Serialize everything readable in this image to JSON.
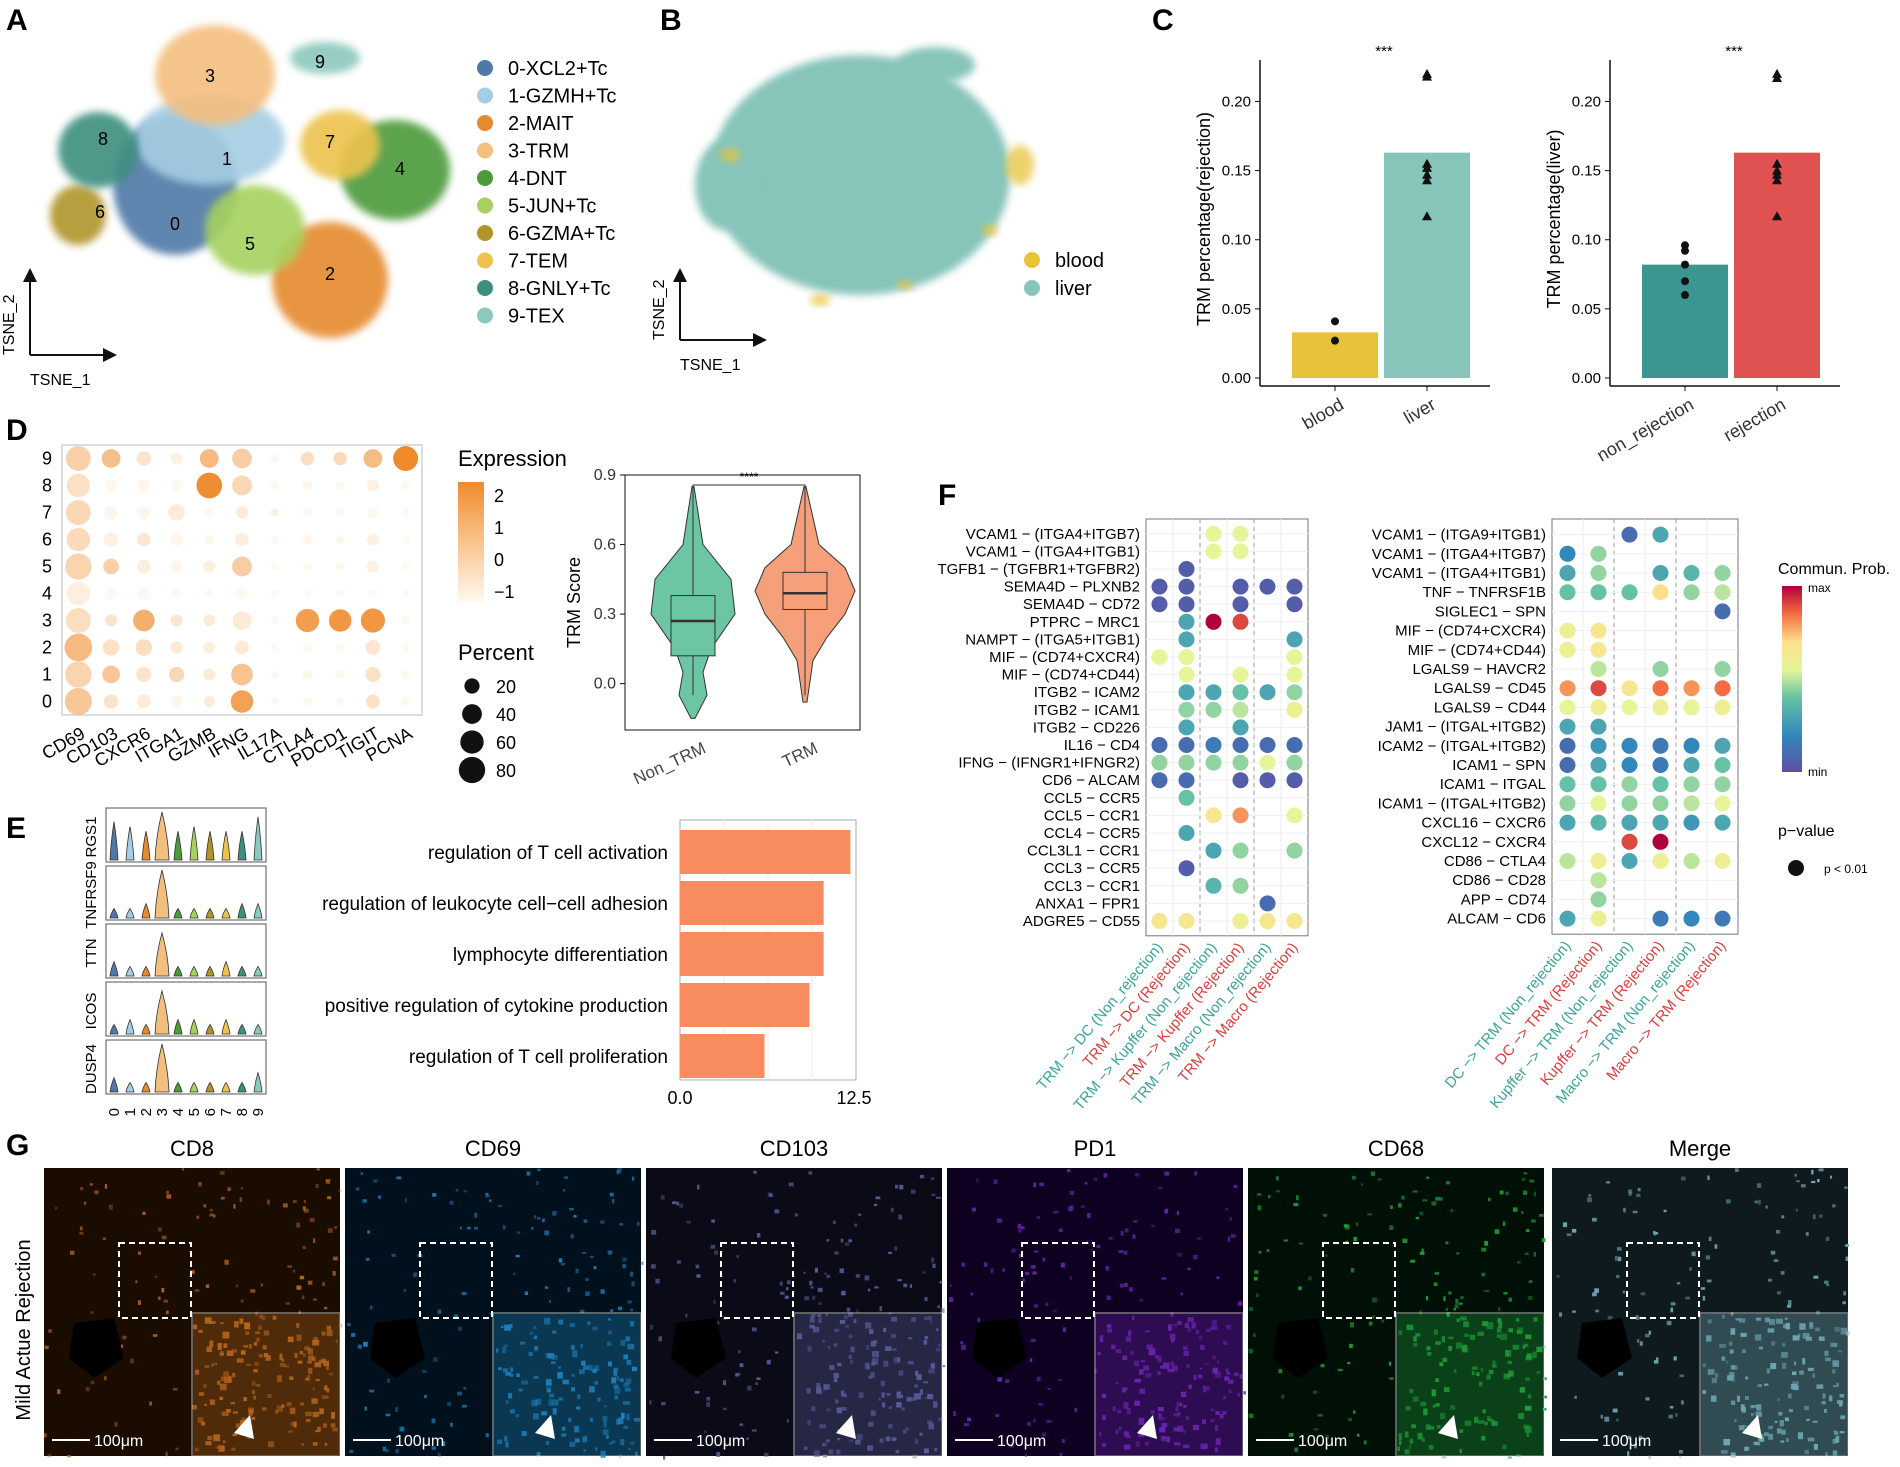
{
  "panels": {
    "A": "A",
    "B": "B",
    "C": "C",
    "D": "D",
    "E": "E",
    "F": "F",
    "G": "G"
  },
  "colors": {
    "clusters": [
      "#4e79a7",
      "#a6cee3",
      "#e68a2e",
      "#f4be7e",
      "#4c9a3a",
      "#a6d15e",
      "#b0942a",
      "#edc34e",
      "#3e8f7f",
      "#8cc8bd"
    ],
    "blood": "#e8c33a",
    "liver": "#87c4ba",
    "non_trm_violin": "#6cc5a3",
    "trm_violin": "#f5a07a",
    "non_rejection_bar": "#3d9590",
    "rejection_bar": "#e05252",
    "enrichment_bar": "#f98c5e",
    "teal_label": "#3aa39a",
    "red_label": "#de3c3c"
  },
  "panelA": {
    "xaxis": "TSNE_1",
    "yaxis": "TSNE_2",
    "cluster_numbers": [
      "0",
      "1",
      "2",
      "3",
      "4",
      "5",
      "6",
      "7",
      "8",
      "9"
    ],
    "legend": [
      "0-XCL2+Tc",
      "1-GZMH+Tc",
      "2-MAIT",
      "3-TRM",
      "4-DNT",
      "5-JUN+Tc",
      "6-GZMA+Tc",
      "7-TEM",
      "8-GNLY+Tc",
      "9-TEX"
    ]
  },
  "panelB": {
    "xaxis": "TSNE_1",
    "yaxis": "TSNE_2",
    "legend": [
      "blood",
      "liver"
    ]
  },
  "chart_data": [
    {
      "panel": "C-left",
      "type": "bar",
      "categories": [
        "blood",
        "liver"
      ],
      "values": [
        0.033,
        0.163
      ],
      "points": [
        [
          0.041,
          0.027
        ],
        [
          0.22,
          0.218,
          0.155,
          0.152,
          0.147,
          0.143,
          0.117
        ]
      ],
      "ylabel": "TRM percentage(rejection)",
      "ylim": [
        0,
        0.23
      ],
      "yticks": [
        "0.00",
        "0.05",
        "0.10",
        "0.15",
        "0.20"
      ],
      "significance": "***"
    },
    {
      "panel": "C-right",
      "type": "bar",
      "categories": [
        "non_rejection",
        "rejection"
      ],
      "values": [
        0.082,
        0.163
      ],
      "points": [
        [
          0.096,
          0.092,
          0.082,
          0.07,
          0.06
        ],
        [
          0.22,
          0.217,
          0.155,
          0.15,
          0.147,
          0.143,
          0.117
        ]
      ],
      "ylabel": "TRM percentage(liver)",
      "ylim": [
        0,
        0.23
      ],
      "yticks": [
        "0.00",
        "0.05",
        "0.10",
        "0.15",
        "0.20"
      ],
      "significance": "***"
    },
    {
      "panel": "D-dot",
      "type": "scatter",
      "genes": [
        "CD69",
        "CD103",
        "CXCR6",
        "ITGA1",
        "GZMB",
        "IFNG",
        "IL17A",
        "CTLA4",
        "PDCD1",
        "TIGIT",
        "PCNA"
      ],
      "clusters": [
        "9",
        "8",
        "7",
        "6",
        "5",
        "4",
        "3",
        "2",
        "1",
        "0"
      ],
      "expression": [
        [
          0.2,
          0.7,
          -0.4,
          -0.8,
          0.9,
          0.3,
          -1.0,
          -0.2,
          -0.1,
          0.8,
          2.3
        ],
        [
          -0.3,
          -1.0,
          -0.9,
          -1.0,
          2.2,
          0.0,
          -1.0,
          -0.9,
          -1.0,
          -0.8,
          -1.0
        ],
        [
          0.0,
          -0.9,
          -0.9,
          -0.6,
          -1.0,
          -0.6,
          -0.8,
          -1.0,
          -1.0,
          -1.0,
          -1.0
        ],
        [
          -0.1,
          -0.8,
          -0.5,
          -0.9,
          -0.9,
          -0.7,
          -1.0,
          -0.9,
          -0.9,
          -0.8,
          -1.0
        ],
        [
          0.1,
          0.2,
          -0.7,
          -0.9,
          -0.7,
          0.3,
          -1.0,
          -1.0,
          -1.0,
          -0.8,
          -1.0
        ],
        [
          -0.7,
          -1.0,
          -1.0,
          -1.0,
          -1.0,
          -1.0,
          -1.0,
          -1.0,
          -1.0,
          -1.0,
          -1.0
        ],
        [
          -0.2,
          -0.4,
          1.2,
          -0.5,
          -0.6,
          -0.6,
          -1.0,
          1.7,
          1.9,
          1.9,
          -1.0
        ],
        [
          0.9,
          -0.3,
          -0.2,
          -0.6,
          -0.7,
          -0.6,
          -1.0,
          -1.0,
          -1.0,
          -0.5,
          -1.0
        ],
        [
          0.1,
          0.5,
          -0.4,
          0.0,
          -0.6,
          0.6,
          -1.0,
          -0.9,
          -1.0,
          -0.3,
          -1.0
        ],
        [
          0.5,
          -0.4,
          -0.6,
          -0.9,
          -0.6,
          1.6,
          -1.0,
          -1.0,
          -1.0,
          -0.3,
          -1.0
        ]
      ],
      "percent": [
        [
          70,
          35,
          18,
          10,
          35,
          40,
          3,
          14,
          14,
          35,
          70
        ],
        [
          60,
          12,
          10,
          8,
          75,
          40,
          3,
          5,
          4,
          10,
          3
        ],
        [
          70,
          15,
          12,
          25,
          5,
          10,
          3,
          4,
          3,
          8,
          3
        ],
        [
          60,
          18,
          15,
          10,
          5,
          15,
          2,
          5,
          4,
          10,
          3
        ],
        [
          80,
          22,
          15,
          10,
          10,
          40,
          2,
          3,
          3,
          10,
          3
        ],
        [
          60,
          10,
          10,
          6,
          4,
          10,
          2,
          2,
          2,
          4,
          2
        ],
        [
          70,
          10,
          50,
          10,
          10,
          35,
          2,
          60,
          55,
          65,
          3
        ],
        [
          90,
          25,
          25,
          12,
          10,
          15,
          2,
          5,
          3,
          20,
          3
        ],
        [
          80,
          30,
          20,
          20,
          10,
          50,
          2,
          5,
          5,
          20,
          3
        ],
        [
          85,
          18,
          15,
          10,
          8,
          55,
          2,
          3,
          3,
          15,
          3
        ]
      ],
      "legend_expression_title": "Expression",
      "legend_expression_ticks": [
        "2",
        "1",
        "0",
        "−1"
      ],
      "legend_percent_title": "Percent",
      "legend_percent_ticks": [
        "20",
        "40",
        "60",
        "80"
      ]
    },
    {
      "panel": "D-violin",
      "type": "box",
      "categories": [
        "Non_TRM",
        "TRM"
      ],
      "median": [
        0.27,
        0.39
      ],
      "q1": [
        0.12,
        0.32
      ],
      "q3": [
        0.38,
        0.48
      ],
      "ylabel": "TRM Score",
      "ylim": [
        -0.2,
        0.9
      ],
      "yticks": [
        "0.0",
        "0.3",
        "0.6",
        "0.9"
      ],
      "significance": "****"
    },
    {
      "panel": "E-violin",
      "type": "violin",
      "genes": [
        "RGS1",
        "TNFRSF9",
        "TTN",
        "ICOS",
        "DUSP4"
      ],
      "xticks": [
        "0",
        "1",
        "2",
        "3",
        "4",
        "5",
        "6",
        "7",
        "8",
        "9"
      ],
      "height": [
        [
          0.8,
          0.7,
          0.6,
          1.0,
          0.6,
          0.7,
          0.6,
          0.6,
          0.6,
          0.9
        ],
        [
          0.2,
          0.2,
          0.3,
          1.0,
          0.2,
          0.2,
          0.2,
          0.2,
          0.3,
          0.3
        ],
        [
          0.3,
          0.2,
          0.2,
          0.9,
          0.2,
          0.2,
          0.2,
          0.3,
          0.2,
          0.2
        ],
        [
          0.2,
          0.3,
          0.2,
          0.9,
          0.3,
          0.3,
          0.2,
          0.3,
          0.2,
          0.2
        ],
        [
          0.3,
          0.2,
          0.2,
          1.0,
          0.2,
          0.2,
          0.2,
          0.2,
          0.2,
          0.4
        ]
      ]
    },
    {
      "panel": "E-bar",
      "type": "bar",
      "categories": [
        "regulation of T cell activation",
        "regulation of leukocyte cell−cell adhesion",
        "lymphocyte differentiation",
        "positive regulation of cytokine production",
        "regulation of T cell proliferation"
      ],
      "values": [
        12.1,
        10.2,
        10.2,
        9.2,
        6.0
      ],
      "xlim": [
        0,
        12.5
      ],
      "xticks": [
        "0.0",
        "12.5"
      ]
    },
    {
      "panel": "F-left",
      "type": "scatter",
      "rows": [
        "VCAM1 − (ITGA4+ITGB7)",
        "VCAM1 − (ITGA4+ITGB1)",
        "TGFB1 − (TGFBR1+TGFBR2)",
        "SEMA4D − PLXNB2",
        "SEMA4D − CD72",
        "PTPRC − MRC1",
        "NAMPT − (ITGA5+ITGB1)",
        "MIF − (CD74+CXCR4)",
        "MIF − (CD74+CD44)",
        "ITGB2 − ICAM2",
        "ITGB2 − ICAM1",
        "ITGB2 − CD226",
        "IL16 − CD4",
        "IFNG − (IFNGR1+IFNGR2)",
        "CD6 − ALCAM",
        "CCL5 − CCR5",
        "CCL5 − CCR1",
        "CCL4 − CCR5",
        "CCL3L1 − CCR1",
        "CCL3 − CCR5",
        "CCL3 − CCR1",
        "ANXA1 − FPR1",
        "ADGRE5 − CD55"
      ],
      "columns": [
        "TRM −> DC (Non_rejection)",
        "TRM −> DC (Rejection)",
        "TRM −> Kupffer (Non_rejection)",
        "TRM −> Kupffer (Rejection)",
        "TRM −> Macro (Non_rejection)",
        "TRM −> Macro (Rejection)"
      ],
      "values": [
        [
          null,
          null,
          0.55,
          0.55,
          null,
          null
        ],
        [
          null,
          null,
          0.55,
          0.55,
          null,
          null
        ],
        [
          null,
          0.05,
          null,
          null,
          null,
          null
        ],
        [
          0.05,
          0.05,
          null,
          0.05,
          0.05,
          0.05
        ],
        [
          0.05,
          0.05,
          null,
          0.05,
          null,
          0.05
        ],
        [
          null,
          0.3,
          1.0,
          0.9,
          null,
          null
        ],
        [
          null,
          0.3,
          null,
          null,
          null,
          0.3
        ],
        [
          0.55,
          0.55,
          null,
          null,
          null,
          0.55
        ],
        [
          null,
          0.55,
          null,
          0.55,
          null,
          0.55
        ],
        [
          null,
          0.3,
          0.3,
          0.4,
          0.3,
          0.45
        ],
        [
          null,
          0.45,
          0.45,
          0.5,
          null,
          0.6
        ],
        [
          null,
          0.3,
          null,
          0.3,
          null,
          null
        ],
        [
          0.1,
          0.1,
          0.15,
          0.1,
          0.1,
          0.1
        ],
        [
          0.45,
          0.45,
          0.45,
          0.45,
          0.55,
          0.45
        ],
        [
          0.1,
          0.1,
          null,
          0.05,
          0.05,
          0.05
        ],
        [
          null,
          0.4,
          null,
          null,
          null,
          null
        ],
        [
          null,
          null,
          0.65,
          0.8,
          null,
          0.55
        ],
        [
          null,
          0.3,
          null,
          null,
          null,
          null
        ],
        [
          null,
          null,
          0.3,
          0.45,
          null,
          0.45
        ],
        [
          null,
          0.05,
          null,
          null,
          null,
          null
        ],
        [
          null,
          null,
          0.35,
          0.45,
          null,
          null
        ],
        [
          null,
          null,
          null,
          null,
          0.1,
          null
        ],
        [
          0.65,
          0.65,
          null,
          0.6,
          0.65,
          0.65
        ]
      ]
    },
    {
      "panel": "F-right",
      "type": "scatter",
      "rows": [
        "VCAM1 − (ITGA9+ITGB1)",
        "VCAM1 − (ITGA4+ITGB7)",
        "VCAM1 − (ITGA4+ITGB1)",
        "TNF − TNFRSF1B",
        "SIGLEC1 − SPN",
        "MIF − (CD74+CXCR4)",
        "MIF − (CD74+CD44)",
        "LGALS9 − HAVCR2",
        "LGALS9 − CD45",
        "LGALS9 − CD44",
        "JAM1 − (ITGAL+ITGB2)",
        "ICAM2 − (ITGAL+ITGB2)",
        "ICAM1 − SPN",
        "ICAM1 − ITGAL",
        "ICAM1 − (ITGAL+ITGB2)",
        "CXCL16 − CXCR6",
        "CXCL12 − CXCR4",
        "CD86 − CTLA4",
        "CD86 − CD28",
        "APP − CD74",
        "ALCAM − CD6"
      ],
      "columns": [
        "DC −> TRM (Non_rejection)",
        "DC −> TRM (Rejection)",
        "Kupffer −> TRM (Non_rejection)",
        "Kupffer −> TRM (Rejection)",
        "Macro −> TRM (Non_rejection)",
        "Macro −> TRM (Rejection)"
      ],
      "values": [
        [
          null,
          null,
          0.1,
          0.3,
          null,
          null
        ],
        [
          0.2,
          0.45,
          null,
          null,
          null,
          null
        ],
        [
          0.3,
          0.45,
          null,
          0.3,
          0.35,
          0.45
        ],
        [
          0.4,
          0.4,
          0.4,
          0.7,
          0.45,
          0.5
        ],
        [
          null,
          null,
          null,
          null,
          null,
          0.1
        ],
        [
          0.6,
          0.65,
          null,
          null,
          null,
          null
        ],
        [
          0.6,
          0.65,
          null,
          null,
          null,
          null
        ],
        [
          null,
          0.5,
          null,
          0.45,
          null,
          0.45
        ],
        [
          0.8,
          0.9,
          0.65,
          0.85,
          0.8,
          0.85
        ],
        [
          0.55,
          0.6,
          0.55,
          0.6,
          0.55,
          0.6
        ],
        [
          0.3,
          0.3,
          null,
          null,
          null,
          null
        ],
        [
          0.1,
          0.25,
          0.2,
          0.15,
          0.2,
          0.3
        ],
        [
          0.1,
          0.3,
          0.2,
          0.15,
          0.3,
          0.4
        ],
        [
          0.4,
          0.4,
          0.45,
          0.4,
          0.45,
          0.45
        ],
        [
          0.45,
          0.55,
          0.45,
          0.45,
          0.5,
          0.55
        ],
        [
          0.3,
          0.35,
          0.3,
          0.3,
          0.25,
          0.3
        ],
        [
          null,
          null,
          0.9,
          1.0,
          null,
          null
        ],
        [
          0.5,
          0.6,
          0.3,
          0.6,
          0.5,
          0.6
        ],
        [
          null,
          0.5,
          null,
          null,
          null,
          null
        ],
        [
          null,
          0.45,
          null,
          null,
          null,
          null
        ],
        [
          0.3,
          0.6,
          null,
          0.15,
          0.2,
          0.15
        ]
      ],
      "legend_prob_title": "Commun. Prob.",
      "legend_prob_max": "max",
      "legend_prob_min": "min",
      "legend_p_title": "p−value",
      "legend_p_label": "p < 0.01"
    }
  ],
  "panelG": {
    "side_label": "Mild Actue Rejection",
    "stains": [
      "CD8",
      "CD69",
      "CD103",
      "PD1",
      "CD68",
      "Merge"
    ],
    "scale_bar": "100μm"
  }
}
